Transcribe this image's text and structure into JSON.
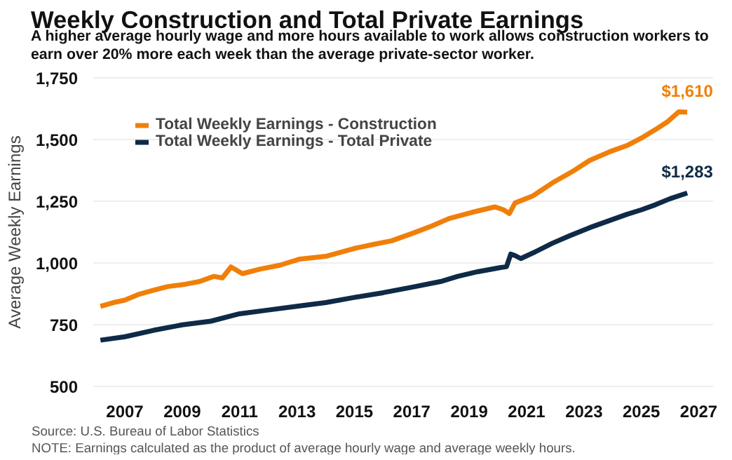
{
  "chart_data": {
    "type": "line",
    "title": "Weekly Construction and Total Private Earnings",
    "subtitle": "A higher average hourly wage and more hours available to work allows construction workers to earn over 20% more each week than the average private-sector worker.",
    "ylabel": "Average Weekly Earnings",
    "series": [
      {
        "name": "Total Weekly Earnings - Construction",
        "color": "#f07f09",
        "x": [
          2006.15,
          2006.6,
          2007.0,
          2007.5,
          2008.0,
          2008.5,
          2009.1,
          2009.6,
          2010.1,
          2010.4,
          2010.7,
          2011.1,
          2011.7,
          2012.4,
          2013.1,
          2014.0,
          2015.0,
          2015.7,
          2016.3,
          2017.0,
          2017.7,
          2018.3,
          2019.1,
          2019.9,
          2020.2,
          2020.4,
          2020.6,
          2021.2,
          2021.9,
          2022.6,
          2023.2,
          2023.9,
          2024.5,
          2025.0,
          2025.5,
          2025.9,
          2026.3,
          2026.6
        ],
        "values": [
          825,
          840,
          850,
          874,
          890,
          905,
          914,
          925,
          946,
          940,
          984,
          957,
          975,
          991,
          1016,
          1027,
          1059,
          1076,
          1090,
          1119,
          1150,
          1180,
          1205,
          1227,
          1215,
          1200,
          1243,
          1270,
          1324,
          1370,
          1415,
          1450,
          1475,
          1505,
          1540,
          1570,
          1611,
          1610
        ]
      },
      {
        "name": "Total Weekly Earnings - Total Private",
        "color": "#0e2a47",
        "x": [
          2006.15,
          2007.0,
          2008.0,
          2009.0,
          2010.0,
          2011.0,
          2012.0,
          2013.0,
          2014.0,
          2015.0,
          2016.0,
          2017.0,
          2018.0,
          2018.6,
          2019.3,
          2020.1,
          2020.3,
          2020.45,
          2020.6,
          2020.8,
          2021.3,
          2021.9,
          2022.5,
          2023.2,
          2023.9,
          2024.5,
          2025.0,
          2025.5,
          2026.0,
          2026.6
        ],
        "values": [
          688,
          702,
          728,
          750,
          765,
          795,
          810,
          825,
          840,
          861,
          880,
          902,
          925,
          946,
          965,
          982,
          985,
          1036,
          1030,
          1018,
          1045,
          1080,
          1110,
          1143,
          1172,
          1197,
          1215,
          1236,
          1260,
          1283
        ]
      }
    ],
    "xlim": [
      2005.9,
      2027.5
    ],
    "ylim": [
      490,
      1760
    ],
    "xticks": [
      2007,
      2009,
      2011,
      2013,
      2015,
      2017,
      2019,
      2021,
      2023,
      2025,
      2027
    ],
    "yticks": [
      500,
      {
        "value": 750,
        "label": "750"
      },
      {
        "value": 1000,
        "label": "1,000"
      },
      {
        "value": 1250,
        "label": "1,250"
      },
      {
        "value": 1500,
        "label": "1,500"
      },
      {
        "value": 1750,
        "label": "1,750"
      }
    ],
    "grid": "y",
    "legend": "top left",
    "marker": "none",
    "line_style": "solid",
    "annotations": [
      {
        "text": "$1,610",
        "x": 2026.6,
        "y": 1610
      },
      {
        "text": "$1,283",
        "x": 2026.6,
        "y": 1283
      },
      "Source: U.S. Bureau of Labor Statistics",
      "NOTE: Earnings calculated as the product of average hourly wage and average weekly hours."
    ]
  }
}
